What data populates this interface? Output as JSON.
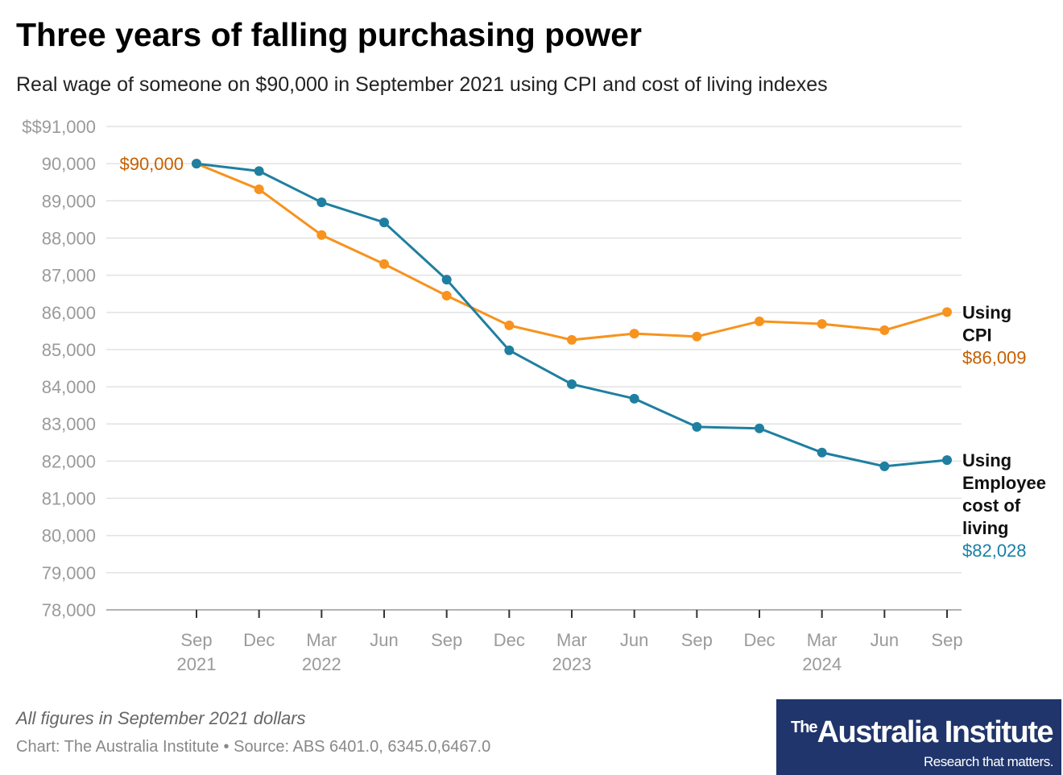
{
  "title": "Three years of falling purchasing power",
  "subtitle": "Real wage of someone on $90,000 in September 2021 using CPI and cost of living indexes",
  "note": "All figures in September 2021 dollars",
  "credit": "Chart: The Australia Institute  • Source: ABS 6401.0, 6345.0,6467.0",
  "logo": {
    "the": "The",
    "name": "Australia Institute",
    "tagline": "Research that matters."
  },
  "colors": {
    "cpi": "#f7931e",
    "cpi_text": "#c65f00",
    "ecl": "#1f7fa0",
    "ecl_text": "#1a7fa6"
  },
  "chart_data": {
    "type": "line",
    "title": "Three years of falling purchasing power",
    "ylim": [
      78000,
      91000
    ],
    "yticks": [
      "78,000",
      "79,000",
      "80,000",
      "81,000",
      "82,000",
      "83,000",
      "84,000",
      "85,000",
      "86,000",
      "87,000",
      "88,000",
      "89,000",
      "90,000",
      "$$91,000"
    ],
    "ytick_values": [
      78000,
      79000,
      80000,
      81000,
      82000,
      83000,
      84000,
      85000,
      86000,
      87000,
      88000,
      89000,
      90000,
      91000
    ],
    "categories": [
      "Sep 2021",
      "Dec",
      "Mar 2022",
      "Jun",
      "Sep",
      "Dec",
      "Mar 2023",
      "Jun",
      "Sep",
      "Dec",
      "Mar 2024",
      "Jun",
      "Sep"
    ],
    "xtick_line1": [
      "Sep",
      "Dec",
      "Mar",
      "Jun",
      "Sep",
      "Dec",
      "Mar",
      "Jun",
      "Sep",
      "Dec",
      "Mar",
      "Jun",
      "Sep"
    ],
    "xtick_line2": [
      "2021",
      "",
      "2022",
      "",
      "",
      "",
      "2023",
      "",
      "",
      "",
      "2024",
      "",
      ""
    ],
    "grid": true,
    "start_label": "$90,000",
    "series": [
      {
        "name": "Using CPI",
        "end_label": "$86,009",
        "values": [
          90000,
          89310,
          88080,
          87300,
          86450,
          85650,
          85260,
          85430,
          85350,
          85760,
          85690,
          85520,
          86009
        ]
      },
      {
        "name": "Using Employee cost of living",
        "end_label": "$82,028",
        "values": [
          90000,
          89800,
          88960,
          88420,
          86880,
          84980,
          84070,
          83680,
          82920,
          82880,
          82230,
          81860,
          82028
        ]
      }
    ]
  }
}
